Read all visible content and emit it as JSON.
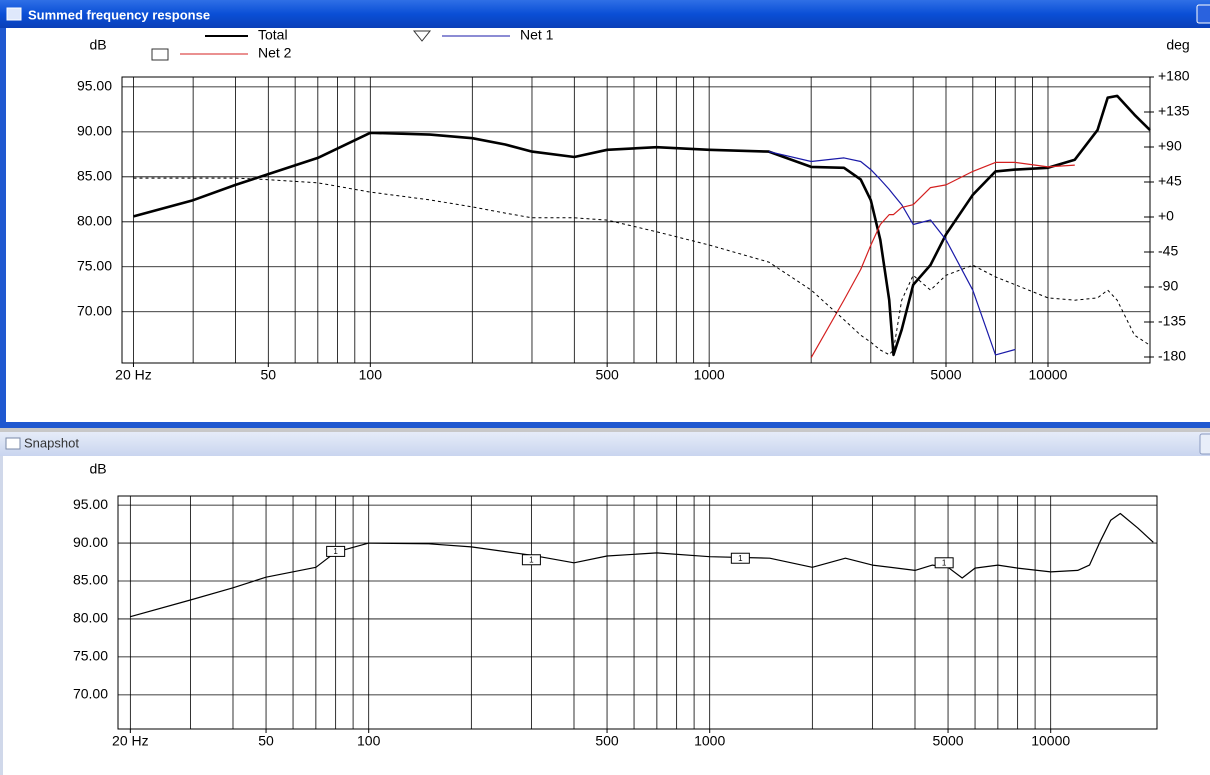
{
  "windows": [
    {
      "title": "Summed frequency response"
    },
    {
      "title": "Snapshot"
    }
  ],
  "chart_data": [
    {
      "type": "line",
      "xlog": true,
      "grid": true,
      "legend": "top",
      "ylabel": "dB",
      "y2label": "deg",
      "xlim": [
        18.5,
        20000
      ],
      "ylim": [
        64.3,
        96.1
      ],
      "y2lim": [
        -187.7,
        180
      ],
      "xticks": [
        {
          "value": 20,
          "label": "20 Hz"
        },
        50,
        100,
        500,
        1000,
        5000,
        10000
      ],
      "xgrid": [
        20,
        30,
        40,
        50,
        60,
        70,
        80,
        90,
        100,
        200,
        300,
        400,
        500,
        600,
        700,
        800,
        900,
        1000,
        2000,
        3000,
        4000,
        5000,
        6000,
        7000,
        8000,
        9000,
        10000
      ],
      "yticks": [
        {
          "value": 70,
          "label": "70.00"
        },
        {
          "value": 75,
          "label": "75.00"
        },
        {
          "value": 80,
          "label": "80.00"
        },
        {
          "value": 85,
          "label": "85.00"
        },
        {
          "value": 90,
          "label": "90.00"
        },
        {
          "value": 95,
          "label": "95.00"
        }
      ],
      "y2ticks": [
        {
          "value": 180,
          "label": "+180"
        },
        {
          "value": 135,
          "label": "+135"
        },
        {
          "value": 90,
          "label": "+90"
        },
        {
          "value": 45,
          "label": "+45"
        },
        {
          "value": 0,
          "label": "+0"
        },
        -45,
        -90,
        -135,
        -180
      ],
      "x": [
        20,
        30,
        40,
        50,
        70,
        100,
        150,
        200,
        250,
        300,
        400,
        500,
        700,
        1000,
        1500,
        2000,
        2500,
        2800,
        3000,
        3200,
        3400,
        3500,
        3700,
        4000,
        4500,
        5000,
        6000,
        7000,
        8000,
        10000,
        12000,
        14000,
        15000,
        16000,
        18000,
        20000
      ],
      "series": [
        {
          "name": "Total",
          "color": "#000000",
          "style": "bold",
          "values": [
            80.6,
            82.4,
            84.1,
            85.3,
            87.1,
            89.9,
            89.7,
            89.3,
            88.6,
            87.8,
            87.2,
            88.0,
            88.3,
            88.0,
            87.8,
            86.1,
            86.0,
            84.7,
            82.4,
            78.0,
            71.3,
            65.2,
            68.0,
            73.0,
            75.2,
            78.6,
            83.0,
            85.6,
            85.8,
            86.0,
            86.9,
            90.2,
            93.8,
            94.0,
            91.9,
            90.2
          ]
        },
        {
          "name": "Net 1",
          "color": "#1a1aa8",
          "style": "solid",
          "marker": "triangle",
          "values": [
            null,
            null,
            null,
            null,
            null,
            null,
            null,
            null,
            null,
            null,
            null,
            null,
            null,
            null,
            87.8,
            86.7,
            87.1,
            86.7,
            85.8,
            84.7,
            83.6,
            83.0,
            81.9,
            79.7,
            80.2,
            78.0,
            72.4,
            65.2,
            65.8,
            null,
            null,
            null,
            null,
            null,
            null,
            null
          ]
        },
        {
          "name": "Net 2",
          "color": "#d42020",
          "style": "solid",
          "marker": "square",
          "values": [
            null,
            null,
            null,
            null,
            null,
            null,
            null,
            null,
            null,
            null,
            null,
            null,
            null,
            null,
            null,
            64.9,
            71.3,
            74.7,
            77.4,
            79.7,
            80.8,
            80.8,
            81.6,
            81.9,
            83.8,
            84.1,
            85.6,
            86.6,
            86.6,
            86.1,
            86.3,
            null,
            null,
            null,
            null,
            null
          ]
        },
        {
          "color": "#000000",
          "style": "dashed",
          "axis": "y2",
          "values": [
            50,
            50,
            50,
            48,
            44,
            32,
            22,
            13,
            5,
            -1,
            -1,
            -4,
            -19,
            -36,
            -58,
            -94,
            -132,
            -152,
            -161,
            -171,
            -177,
            -171,
            -107,
            -75,
            -94,
            -75,
            -62,
            -77,
            -87,
            -104,
            -107,
            -104,
            -94,
            -107,
            -152,
            -165
          ]
        }
      ]
    },
    {
      "type": "line",
      "xlog": true,
      "grid": true,
      "ylabel": "dB",
      "xlim": [
        18.4,
        20500
      ],
      "ylim": [
        65.5,
        96.2
      ],
      "xticks": [
        {
          "value": 20,
          "label": "20 Hz"
        },
        50,
        100,
        500,
        1000,
        5000,
        10000
      ],
      "xgrid": [
        20,
        30,
        40,
        50,
        60,
        70,
        80,
        90,
        100,
        200,
        300,
        400,
        500,
        600,
        700,
        800,
        900,
        1000,
        2000,
        3000,
        4000,
        5000,
        6000,
        7000,
        8000,
        9000,
        10000
      ],
      "yticks": [
        {
          "value": 70,
          "label": "70.00"
        },
        {
          "value": 75,
          "label": "75.00"
        },
        {
          "value": 80,
          "label": "80.00"
        },
        {
          "value": 85,
          "label": "85.00"
        },
        {
          "value": 90,
          "label": "90.00"
        },
        {
          "value": 95,
          "label": "95.00"
        }
      ],
      "x": [
        20,
        30,
        40,
        50,
        70,
        80,
        100,
        150,
        200,
        300,
        400,
        500,
        700,
        1000,
        1500,
        2000,
        2500,
        3000,
        4000,
        4500,
        5000,
        5500,
        6000,
        7000,
        8000,
        10000,
        12000,
        13000,
        14000,
        15000,
        16000,
        18000,
        20000
      ],
      "series": [
        {
          "color": "#000000",
          "style": "solid",
          "values": [
            80.3,
            82.5,
            84.1,
            85.5,
            86.8,
            88.8,
            90.0,
            89.9,
            89.5,
            88.4,
            87.4,
            88.3,
            88.7,
            88.2,
            88.0,
            86.8,
            88.0,
            87.1,
            86.4,
            87.1,
            86.8,
            85.4,
            86.7,
            87.1,
            86.7,
            86.2,
            86.4,
            87.1,
            90.3,
            93.0,
            93.9,
            92.0,
            90.1
          ]
        }
      ],
      "annotations": [
        {
          "x": 80,
          "y": 88.9,
          "text": "1"
        },
        {
          "x": 300,
          "y": 87.8,
          "text": "1"
        },
        {
          "x": 1230,
          "y": 88.0,
          "text": "1"
        },
        {
          "x": 4870,
          "y": 87.4,
          "text": "1"
        }
      ]
    }
  ]
}
